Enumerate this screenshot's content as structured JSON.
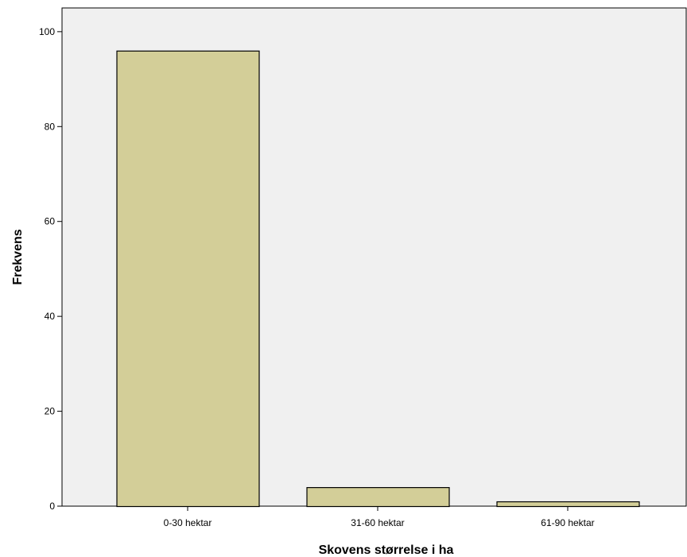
{
  "chart_data": {
    "type": "bar",
    "categories": [
      "0-30 hektar",
      "31-60 hektar",
      "61-90 hektar"
    ],
    "values": [
      96,
      4,
      1
    ],
    "title": "",
    "xlabel": "Skovens størrelse i ha",
    "ylabel": "Frekvens",
    "ylim": [
      0,
      105
    ],
    "yticks": [
      "0",
      "20",
      "40",
      "60",
      "80",
      "100"
    ],
    "grid": false,
    "legend": "none",
    "colors": {
      "bar_fill": "#d3ce98",
      "bar_stroke": "#000000",
      "plot_background": "#f0f0f0",
      "axis": "#000000"
    }
  }
}
